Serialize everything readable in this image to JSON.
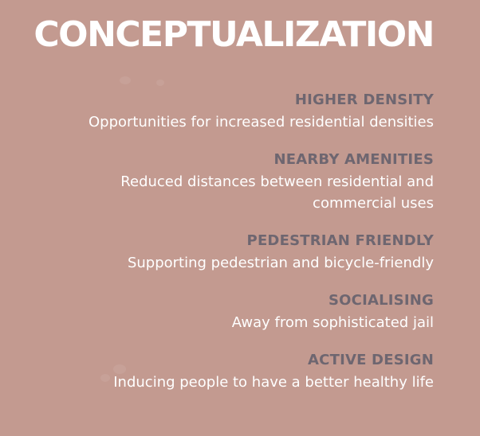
{
  "slide": {
    "background_color": "#c39a90",
    "title": "CONCEPTUALIZATION",
    "items": [
      {
        "heading": "HIGHER DENSITY",
        "text": "Opportunities for increased residential densities"
      },
      {
        "heading": "NEARBY AMENITIES",
        "text": "Reduced distances between residential and\ncommercial uses"
      },
      {
        "heading": "PEDESTRIAN FRIENDLY",
        "text": "Supporting pedestrian and bicycle-friendly"
      },
      {
        "heading": "SOCIALISING",
        "text": "Away from sophisticated jail"
      },
      {
        "heading": "ACTIVE DESIGN",
        "text": "Inducing people to have a better healthy life"
      }
    ]
  }
}
